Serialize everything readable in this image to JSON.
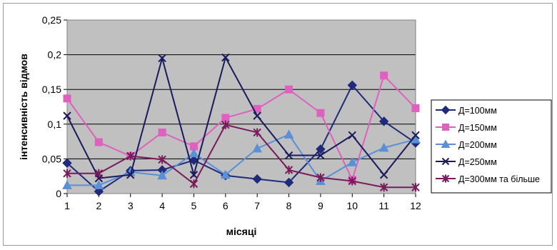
{
  "chart_data": {
    "type": "line",
    "xlabel": "місяці",
    "ylabel": "інтенсивність відмов",
    "categories": [
      "1",
      "2",
      "3",
      "4",
      "5",
      "6",
      "7",
      "8",
      "9",
      "10",
      "11",
      "12"
    ],
    "y_ticks": [
      "0",
      "0,05",
      "0,1",
      "0,15",
      "0,2",
      "0,25"
    ],
    "ylim": [
      0,
      0.25
    ],
    "grid": "horizontal",
    "plot_background": "#c0c0c0",
    "legend_position": "right",
    "series": [
      {
        "name": "Д=100мм",
        "color": "#1f2a7a",
        "marker": "diamond",
        "values": [
          0.044,
          0.003,
          0.033,
          0.034,
          0.048,
          0.026,
          0.021,
          0.016,
          0.064,
          0.156,
          0.104,
          0.073
        ]
      },
      {
        "name": "Д=150мм",
        "color": "#e060c0",
        "marker": "square",
        "values": [
          0.137,
          0.074,
          0.054,
          0.088,
          0.068,
          0.109,
          0.122,
          0.15,
          0.116,
          0.02,
          0.17,
          0.123
        ]
      },
      {
        "name": "Д=200мм",
        "color": "#5b8fd6",
        "marker": "triangle",
        "values": [
          0.012,
          0.012,
          0.031,
          0.026,
          0.058,
          0.027,
          0.065,
          0.085,
          0.018,
          0.045,
          0.066,
          0.078
        ]
      },
      {
        "name": "Д=250мм",
        "color": "#1a1a5e",
        "marker": "x",
        "values": [
          0.112,
          0.022,
          0.027,
          0.195,
          0.027,
          0.196,
          0.112,
          0.055,
          0.055,
          0.084,
          0.027,
          0.084
        ]
      },
      {
        "name": "Д=300мм та більше",
        "color": "#7a1a5a",
        "marker": "star",
        "values": [
          0.029,
          0.029,
          0.054,
          0.049,
          0.014,
          0.099,
          0.088,
          0.034,
          0.023,
          0.018,
          0.009,
          0.009
        ]
      }
    ]
  }
}
